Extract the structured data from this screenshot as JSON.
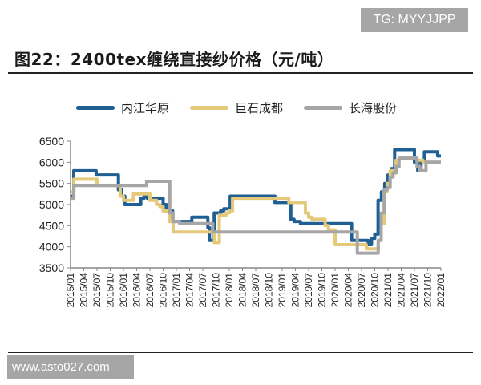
{
  "watermark_top": "TG: MYYJJPP",
  "watermark_bottom": "www.asto027.com",
  "chart_data": {
    "type": "line",
    "title": "图22：2400tex缠绕直接纱价格（元/吨）",
    "xlabel": "",
    "ylabel": "",
    "ylim": [
      3500,
      6500
    ],
    "yticks": [
      3500,
      4000,
      4500,
      5000,
      5500,
      6000,
      6500
    ],
    "grid": false,
    "legend_position": "top",
    "x_tick_labels": [
      "2015/01",
      "2015/04",
      "2015/07",
      "2015/10",
      "2016/01",
      "2016/04",
      "2016/07",
      "2016/10",
      "2017/01",
      "2017/04",
      "2017/07",
      "2017/10",
      "2018/01",
      "2018/04",
      "2018/07",
      "2018/10",
      "2019/01",
      "2019/04",
      "2019/07",
      "2019/10",
      "2020/01",
      "2020/04",
      "2020/07",
      "2020/10",
      "2021/01",
      "2021/04",
      "2021/07",
      "2021/10",
      "2022/01"
    ],
    "x_unit": "month index from 2015/01 (0) to 2022/01 (84)",
    "series": [
      {
        "name": "内江华原",
        "color": "#1f5f93",
        "points": [
          [
            0,
            5200
          ],
          [
            1,
            5800
          ],
          [
            7,
            5800
          ],
          [
            8,
            5700
          ],
          [
            14,
            5700
          ],
          [
            15,
            5350
          ],
          [
            16,
            5200
          ],
          [
            17,
            5000
          ],
          [
            21,
            5000
          ],
          [
            22,
            5150
          ],
          [
            23,
            5200
          ],
          [
            24,
            5150
          ],
          [
            28,
            5150
          ],
          [
            29,
            5000
          ],
          [
            30,
            4850
          ],
          [
            32,
            4600
          ],
          [
            37,
            4600
          ],
          [
            38,
            4700
          ],
          [
            42,
            4700
          ],
          [
            43,
            4450
          ],
          [
            43.5,
            4150
          ],
          [
            44,
            4150
          ],
          [
            45,
            4800
          ],
          [
            47,
            4850
          ],
          [
            48,
            4900
          ],
          [
            50,
            5200
          ],
          [
            63,
            5200
          ],
          [
            64,
            5050
          ],
          [
            68,
            5050
          ],
          [
            69,
            4650
          ],
          [
            70,
            4600
          ],
          [
            72,
            4550
          ],
          [
            87,
            4550
          ]
        ],
        "points_note": "step series; last segment continues to 2020/04",
        "points_tail": [
          [
            87,
            4550
          ],
          [
            88,
            4150
          ],
          [
            92,
            4150
          ],
          [
            93,
            4050
          ],
          [
            94,
            4200
          ],
          [
            95,
            4300
          ],
          [
            96,
            5100
          ],
          [
            97,
            5300
          ],
          [
            98,
            5500
          ],
          [
            99,
            5700
          ],
          [
            100,
            5850
          ],
          [
            101,
            6300
          ],
          [
            106,
            6300
          ],
          [
            107,
            6000
          ],
          [
            108,
            5800
          ],
          [
            109,
            6000
          ],
          [
            110,
            6250
          ],
          [
            113,
            6250
          ],
          [
            114,
            6150
          ],
          [
            115,
            6150
          ]
        ]
      },
      {
        "name": "巨石成都",
        "color": "#e4c97a",
        "points": [
          [
            0,
            5300
          ],
          [
            1,
            5600
          ],
          [
            7,
            5600
          ],
          [
            8,
            5450
          ],
          [
            14,
            5450
          ],
          [
            15,
            5200
          ],
          [
            16,
            5100
          ],
          [
            18,
            5100
          ],
          [
            19,
            5250
          ],
          [
            23,
            5250
          ],
          [
            24,
            5100
          ],
          [
            26,
            5000
          ],
          [
            27,
            4950
          ],
          [
            28,
            4850
          ],
          [
            30,
            4600
          ],
          [
            31,
            4350
          ],
          [
            36,
            4350
          ],
          [
            37,
            4350
          ],
          [
            43,
            4350
          ],
          [
            43.5,
            4100
          ],
          [
            44,
            4100
          ],
          [
            45,
            4750
          ],
          [
            47,
            4800
          ],
          [
            48,
            4850
          ],
          [
            49,
            5150
          ],
          [
            65,
            5150
          ],
          [
            66,
            5050
          ],
          [
            70,
            5050
          ],
          [
            71,
            4800
          ],
          [
            72,
            4700
          ],
          [
            73,
            4650
          ],
          [
            76,
            4650
          ],
          [
            77,
            4500
          ],
          [
            78,
            4400
          ],
          [
            80,
            4050
          ],
          [
            84,
            4050
          ]
        ],
        "points_tail": [
          [
            84,
            4050
          ],
          [
            90,
            3950
          ],
          [
            93,
            3950
          ],
          [
            94,
            4150
          ],
          [
            95,
            4550
          ],
          [
            96,
            5300
          ],
          [
            97,
            5500
          ],
          [
            98,
            5800
          ],
          [
            99,
            5800
          ],
          [
            100,
            6050
          ],
          [
            101,
            6100
          ],
          [
            106,
            6100
          ],
          [
            107,
            6050
          ],
          [
            108,
            6050
          ],
          [
            109,
            6000
          ],
          [
            115,
            6000
          ]
        ]
      },
      {
        "name": "长海股份",
        "color": "#a6a6a6",
        "points": [
          [
            0,
            5150
          ],
          [
            1,
            5450
          ],
          [
            22,
            5450
          ],
          [
            23,
            5550
          ],
          [
            29,
            5550
          ],
          [
            30,
            4800
          ],
          [
            31,
            4600
          ],
          [
            33,
            4550
          ],
          [
            43,
            4350
          ],
          [
            84,
            4350
          ]
        ],
        "points_tail": [
          [
            84,
            4350
          ],
          [
            86,
            4350
          ],
          [
            87,
            3850
          ],
          [
            93,
            3850
          ],
          [
            94,
            4150
          ],
          [
            95,
            4800
          ],
          [
            96,
            5350
          ],
          [
            97,
            5400
          ],
          [
            98,
            5650
          ],
          [
            99,
            5750
          ],
          [
            100,
            5900
          ],
          [
            101,
            6100
          ],
          [
            106,
            6100
          ],
          [
            107,
            5900
          ],
          [
            108,
            5800
          ],
          [
            109,
            5800
          ],
          [
            110,
            6000
          ],
          [
            115,
            6000
          ]
        ]
      }
    ]
  },
  "legend": [
    {
      "label": "内江华原",
      "color": "#1f5f93"
    },
    {
      "label": "巨石成都",
      "color": "#e4c97a"
    },
    {
      "label": "长海股份",
      "color": "#a6a6a6"
    }
  ]
}
